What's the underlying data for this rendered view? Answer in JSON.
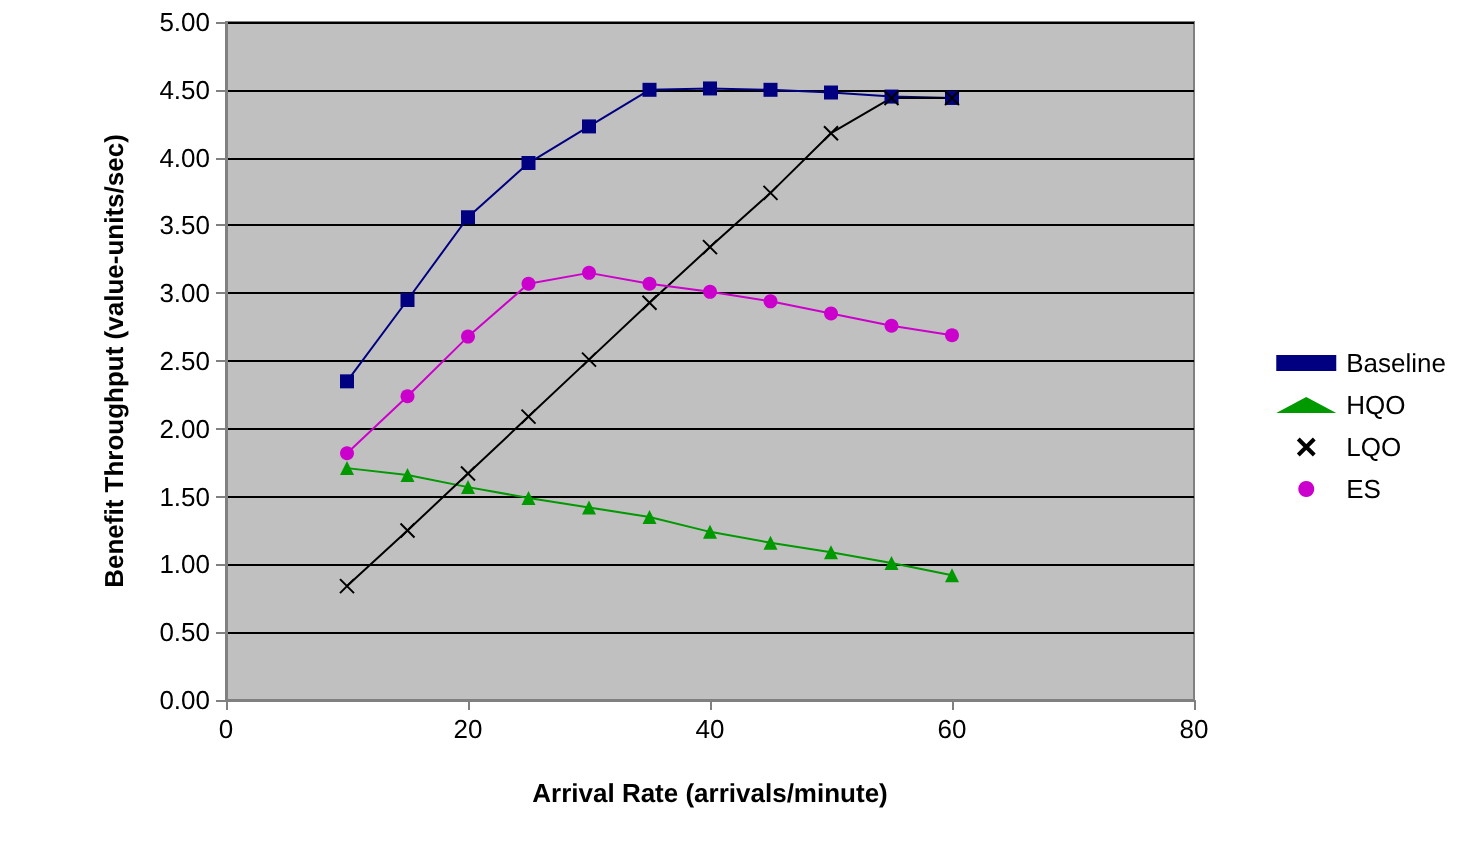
{
  "chart_data": {
    "type": "line",
    "xlabel": "Arrival Rate (arrivals/minute)",
    "ylabel": "Benefit Throughput (value-units/sec)",
    "x": [
      10,
      15,
      20,
      25,
      30,
      35,
      40,
      45,
      50,
      55,
      60
    ],
    "series": [
      {
        "name": "Baseline",
        "color": "#000080",
        "marker": "square",
        "values": [
          2.35,
          2.95,
          3.56,
          3.96,
          4.23,
          4.5,
          4.51,
          4.5,
          4.48,
          4.45,
          4.44
        ]
      },
      {
        "name": "HQO",
        "color": "#009900",
        "marker": "triangle",
        "values": [
          1.71,
          1.66,
          1.57,
          1.49,
          1.42,
          1.35,
          1.24,
          1.16,
          1.09,
          1.01,
          0.92
        ]
      },
      {
        "name": "LQO",
        "color": "#000000",
        "marker": "cross",
        "values": [
          0.84,
          1.25,
          1.67,
          2.09,
          2.51,
          2.93,
          3.34,
          3.74,
          4.18,
          4.44,
          4.44
        ]
      },
      {
        "name": "ES",
        "color": "#cc00cc",
        "marker": "circle",
        "values": [
          1.82,
          2.24,
          2.68,
          3.07,
          3.15,
          3.07,
          3.01,
          2.94,
          2.85,
          2.76,
          2.69
        ]
      }
    ],
    "xlim": [
      0,
      80
    ],
    "xticks": [
      0,
      20,
      40,
      60,
      80
    ],
    "ylim": [
      0,
      5
    ],
    "yticks": [
      {
        "value": 0,
        "label": "0.00"
      },
      {
        "value": 0.5,
        "label": "0.50"
      },
      {
        "value": 1,
        "label": "1.00"
      },
      {
        "value": 1.5,
        "label": "1.50"
      },
      {
        "value": 2,
        "label": "2.00"
      },
      {
        "value": 2.5,
        "label": "2.50"
      },
      {
        "value": 3,
        "label": "3.00"
      },
      {
        "value": 3.5,
        "label": "3.50"
      },
      {
        "value": 4,
        "label": "4.00"
      },
      {
        "value": 4.5,
        "label": "4.50"
      },
      {
        "value": 5,
        "label": "5.00"
      }
    ],
    "grid": "y",
    "legend": "right",
    "line_style": "solid"
  }
}
